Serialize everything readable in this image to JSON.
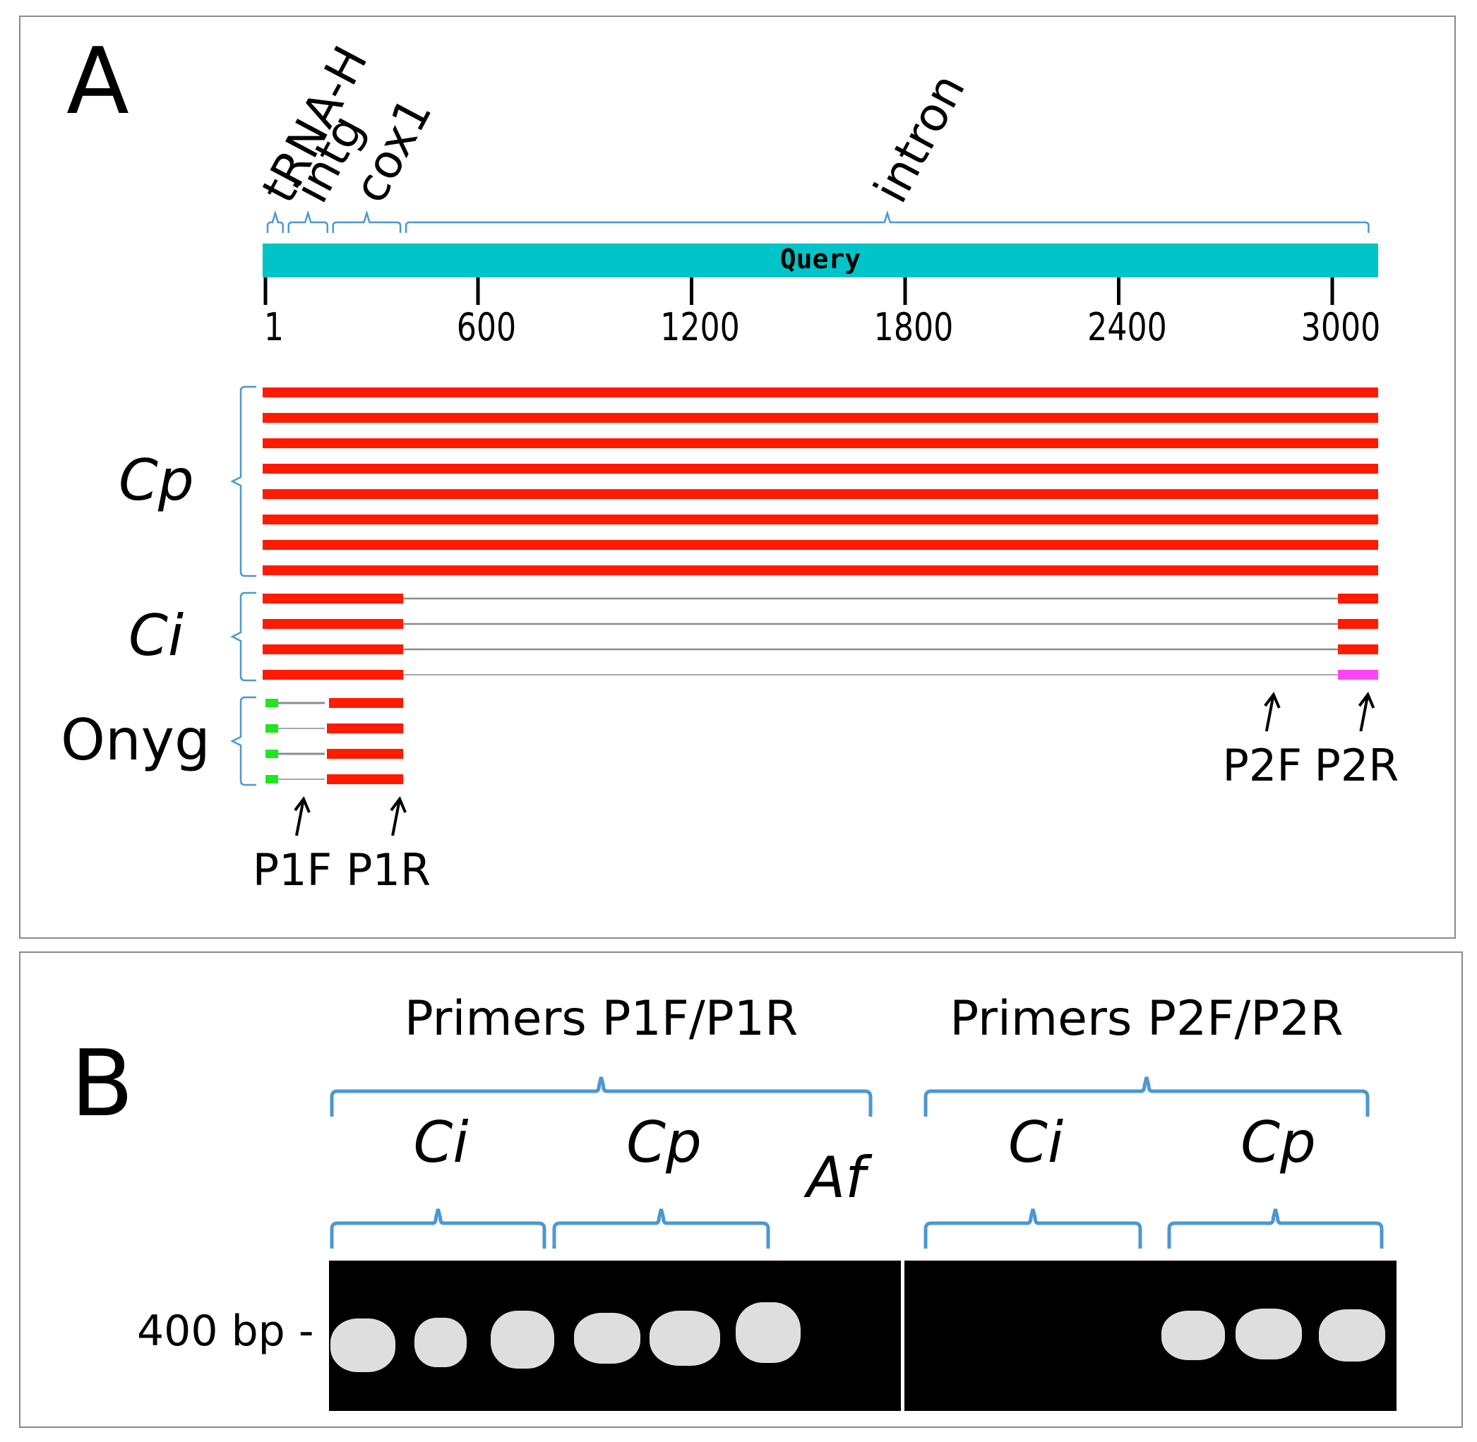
{
  "panel_a": {
    "letter": "A",
    "query_label": "Query",
    "colors": {
      "query_bar": "#00c4c8",
      "match": "#ff1a00",
      "gap_line": "#8c8c8c",
      "bracket": "#4d97d1",
      "primer_tip_green": "#22e51f",
      "mismatch_pink": "#ff44f5"
    },
    "ruler_range": [
      1,
      3140
    ],
    "ticks": [
      {
        "value": 1,
        "label": "1"
      },
      {
        "value": 600,
        "label": "600"
      },
      {
        "value": 1200,
        "label": "1200"
      },
      {
        "value": 1800,
        "label": "1800"
      },
      {
        "value": 2400,
        "label": "2400"
      },
      {
        "value": 3000,
        "label": "3000"
      }
    ],
    "regions": [
      {
        "label": "tRNA-H",
        "start": 1,
        "end": 60
      },
      {
        "label": "intg",
        "start": 60,
        "end": 185
      },
      {
        "label": "cox1",
        "start": 185,
        "end": 390
      },
      {
        "label": "intron",
        "start": 390,
        "end": 3110
      }
    ],
    "groups": [
      {
        "label": "Cp",
        "italic": true,
        "row_count": 8,
        "segments": [
          [
            1,
            3140
          ]
        ]
      },
      {
        "label": "Ci",
        "italic": true,
        "row_count": 4,
        "segments": [
          [
            1,
            390
          ],
          [
            3030,
            3140
          ]
        ],
        "last_row_right_color": "mismatch_pink"
      },
      {
        "label": "Onyg",
        "italic": false,
        "row_count": 4,
        "segments": [
          [
            1,
            390
          ]
        ],
        "primer_tip": [
          1,
          40
        ],
        "gap": [
          40,
          185
        ]
      }
    ],
    "primers": [
      {
        "label": "P1F",
        "position": 110
      },
      {
        "label": "P1R",
        "position": 380
      },
      {
        "label": "P2F",
        "position": 2835
      },
      {
        "label": "P2R",
        "position": 3100
      }
    ]
  },
  "panel_b": {
    "letter": "B",
    "primer_sets": [
      {
        "label": "Primers P1F/P1R",
        "subgroups": [
          "Ci",
          "Cp"
        ],
        "extra_label": "Af"
      },
      {
        "label": "Primers P2F/P2R",
        "subgroups": [
          "Ci",
          "Cp"
        ]
      }
    ],
    "size_marker": "400 bp -",
    "gel_lanes": [
      {
        "set": "P1F/P1R",
        "sample": "Ci",
        "band": true
      },
      {
        "set": "P1F/P1R",
        "sample": "Ci",
        "band": true
      },
      {
        "set": "P1F/P1R",
        "sample": "Ci",
        "band": true
      },
      {
        "set": "P1F/P1R",
        "sample": "Cp",
        "band": true
      },
      {
        "set": "P1F/P1R",
        "sample": "Cp",
        "band": true
      },
      {
        "set": "P1F/P1R",
        "sample": "Cp",
        "band": true
      },
      {
        "set": "P1F/P1R",
        "sample": "Af",
        "band": false
      },
      {
        "set": "P2F/P2R",
        "sample": "Ci",
        "band": false
      },
      {
        "set": "P2F/P2R",
        "sample": "Ci",
        "band": false
      },
      {
        "set": "P2F/P2R",
        "sample": "Ci",
        "band": false
      },
      {
        "set": "P2F/P2R",
        "sample": "Cp",
        "band": true
      },
      {
        "set": "P2F/P2R",
        "sample": "Cp",
        "band": true
      },
      {
        "set": "P2F/P2R",
        "sample": "Cp",
        "band": true
      }
    ]
  }
}
